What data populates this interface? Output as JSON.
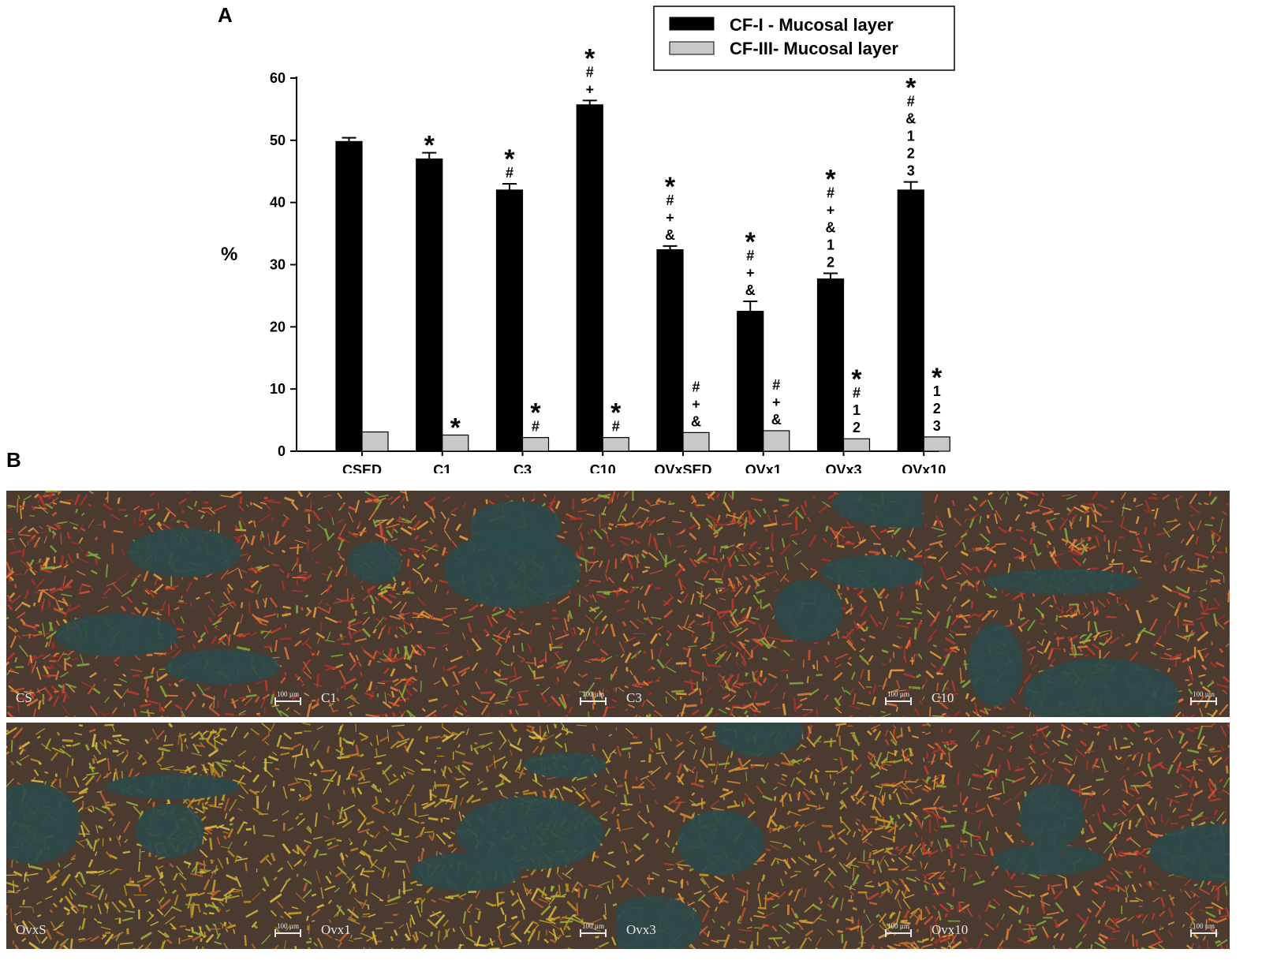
{
  "panel_a_letter": "A",
  "panel_b_letter": "B",
  "chart_data": {
    "type": "bar",
    "categories": [
      "CSED",
      "C1",
      "C3",
      "C10",
      "OVxSED",
      "OVx1",
      "OVx3",
      "OVx10"
    ],
    "ylabel": "%",
    "xlabel": "",
    "ylim": [
      0,
      60
    ],
    "yticks": [
      0,
      10,
      20,
      30,
      40,
      50,
      60
    ],
    "legend_position": "top-right",
    "series": [
      {
        "name": "CF-I - Mucosal layer",
        "color": "#000000",
        "values": [
          49.8,
          47.0,
          42.0,
          55.7,
          32.4,
          22.5,
          27.7,
          42.0
        ],
        "errors": [
          0.6,
          1.0,
          1.0,
          0.7,
          0.6,
          1.6,
          0.9,
          1.3
        ],
        "annotations": [
          [],
          [
            "*"
          ],
          [
            "*",
            "#"
          ],
          [
            "*",
            "#",
            "+"
          ],
          [
            "*",
            "#",
            "+",
            "&"
          ],
          [
            "*",
            "#",
            "+",
            "&"
          ],
          [
            "*",
            "#",
            "+",
            "&",
            "1",
            "2"
          ],
          [
            "*",
            "#",
            "&",
            "1",
            "2",
            "3"
          ]
        ]
      },
      {
        "name": "CF-III- Mucosal layer",
        "color": "#c8c8c8",
        "values": [
          3.1,
          2.6,
          2.2,
          2.2,
          3.0,
          3.3,
          2.0,
          2.3
        ],
        "errors": [
          0.0,
          0.0,
          0.0,
          0.0,
          0.0,
          0.0,
          0.0,
          0.0
        ],
        "annotations": [
          [],
          [
            "*"
          ],
          [
            "*",
            "#"
          ],
          [
            "*",
            "#"
          ],
          [
            "#",
            "+",
            "&"
          ],
          [
            "#",
            "+",
            "&"
          ],
          [
            "*",
            "#",
            "1",
            "2"
          ],
          [
            "*",
            "1",
            "2",
            "3"
          ]
        ]
      }
    ]
  },
  "micrographs": [
    {
      "label": "CS",
      "tone": "red",
      "scale_label": "100 µm"
    },
    {
      "label": "C1",
      "tone": "red",
      "scale_label": "100 µm"
    },
    {
      "label": "C3",
      "tone": "red",
      "scale_label": "100 µm"
    },
    {
      "label": "C10",
      "tone": "red",
      "scale_label": "100 µm"
    },
    {
      "label": "OvxS",
      "tone": "yellow",
      "scale_label": "100 µm"
    },
    {
      "label": "Ovx1",
      "tone": "yellow",
      "scale_label": "100 µm"
    },
    {
      "label": "Ovx3",
      "tone": "orange",
      "scale_label": "100 µm"
    },
    {
      "label": "Ovx10",
      "tone": "red",
      "scale_label": "100 µm"
    }
  ]
}
